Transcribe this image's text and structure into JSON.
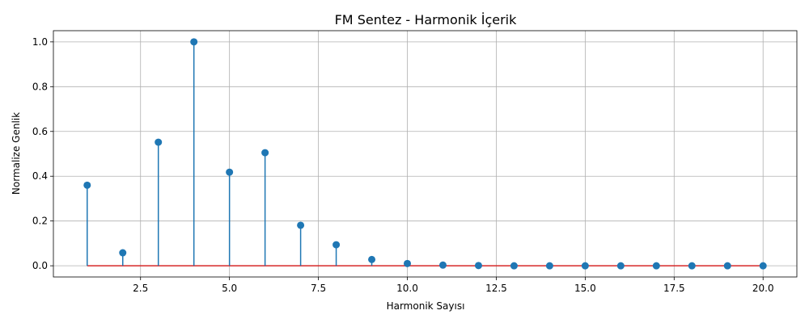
{
  "chart_data": {
    "type": "stem",
    "title": "FM Sentez - Harmonik İçerik",
    "xlabel": "Harmonik Sayısı",
    "ylabel": "Normalize Genlik",
    "x": [
      1,
      2,
      3,
      4,
      5,
      6,
      7,
      8,
      9,
      10,
      11,
      12,
      13,
      14,
      15,
      16,
      17,
      18,
      19,
      20
    ],
    "values": [
      0.36,
      0.058,
      0.552,
      1.0,
      0.418,
      0.505,
      0.181,
      0.094,
      0.028,
      0.01,
      0.003,
      0.001,
      0.0,
      0.0,
      0.0,
      0.0,
      0.0,
      0.0,
      0.0,
      0.0
    ],
    "xlim": [
      0.05,
      20.95
    ],
    "ylim": [
      -0.05,
      1.05
    ],
    "xticks": [
      2.5,
      5.0,
      7.5,
      10.0,
      12.5,
      15.0,
      17.5,
      20.0
    ],
    "xtick_labels": [
      "2.5",
      "5.0",
      "7.5",
      "10.0",
      "12.5",
      "15.0",
      "17.5",
      "20.0"
    ],
    "yticks": [
      0.0,
      0.2,
      0.4,
      0.6,
      0.8,
      1.0
    ],
    "ytick_labels": [
      "0.0",
      "0.2",
      "0.4",
      "0.6",
      "0.8",
      "1.0"
    ],
    "grid": true,
    "colors": {
      "marker": "#1f77b4",
      "stem": "#1f77b4",
      "baseline": "#d62728",
      "grid": "#b0b0b0"
    }
  }
}
